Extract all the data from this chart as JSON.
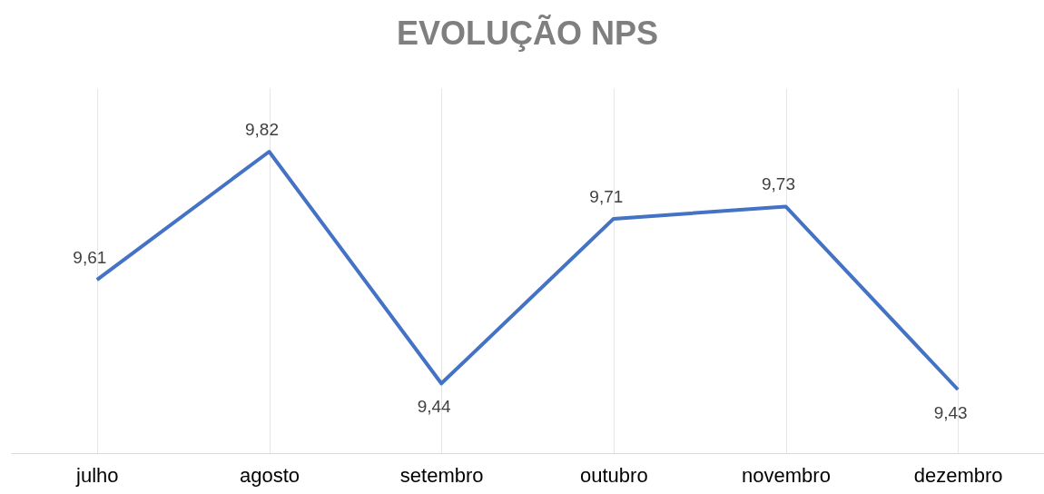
{
  "chart_data": {
    "type": "line",
    "title": "EVOLUÇÃO NPS",
    "categories": [
      "julho",
      "agosto",
      "setembro",
      "outubro",
      "novembro",
      "dezembro"
    ],
    "series": [
      {
        "color": "#4472c4",
        "values": [
          9.61,
          9.82,
          9.44,
          9.71,
          9.73,
          9.43
        ],
        "value_labels": [
          "9,61",
          "9,82",
          "9,44",
          "9,71",
          "9,73",
          "9,43"
        ]
      }
    ],
    "tick_labels": "x",
    "grid": "x",
    "marker": "none",
    "line_style": "solid"
  }
}
